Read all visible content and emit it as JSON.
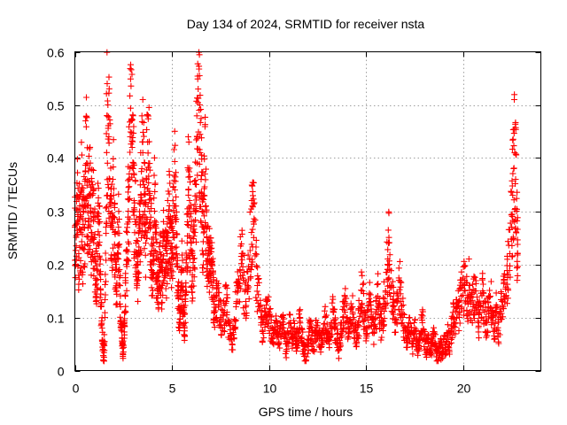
{
  "chart_data": {
    "type": "scatter",
    "title": "Day 134 of 2024, SRMTID for receiver nsta",
    "xlabel": "GPS time / hours",
    "ylabel": "SRMTID / TECUs",
    "xlim": [
      0,
      24
    ],
    "ylim": [
      0,
      0.6
    ],
    "xticks": [
      0,
      5,
      10,
      15,
      20
    ],
    "yticks": [
      0,
      0.1,
      0.2,
      0.3,
      0.4,
      0.5,
      0.6
    ],
    "xtick_labels": [
      "0",
      "5",
      "10",
      "15",
      "20"
    ],
    "ytick_labels": [
      "0",
      "0.1",
      "0.2",
      "0.3",
      "0.4",
      "0.5",
      "0.6"
    ],
    "grid": true,
    "marker": "+",
    "series_color": "#ff0000",
    "x_data_range": [
      0,
      22.8
    ],
    "note": "Dense cloud of plus markers; values below are a representative digitized subset of the scatter.",
    "series": [
      {
        "name": "nsta",
        "points": [
          [
            0.0,
            0.27
          ],
          [
            0.05,
            0.2
          ],
          [
            0.1,
            0.33
          ],
          [
            0.15,
            0.29
          ],
          [
            0.2,
            0.22
          ],
          [
            0.25,
            0.31
          ],
          [
            0.3,
            0.26
          ],
          [
            0.35,
            0.34
          ],
          [
            0.4,
            0.23
          ],
          [
            0.45,
            0.3
          ],
          [
            0.5,
            0.27
          ],
          [
            0.55,
            0.36
          ],
          [
            0.6,
            0.39
          ],
          [
            0.65,
            0.31
          ],
          [
            0.7,
            0.28
          ],
          [
            0.75,
            0.33
          ],
          [
            0.8,
            0.3
          ],
          [
            0.85,
            0.26
          ],
          [
            0.9,
            0.33
          ],
          [
            0.95,
            0.29
          ],
          [
            1.0,
            0.25
          ],
          [
            1.05,
            0.21
          ],
          [
            1.1,
            0.17
          ],
          [
            1.15,
            0.22
          ],
          [
            1.2,
            0.28
          ],
          [
            1.25,
            0.31
          ],
          [
            1.3,
            0.18
          ],
          [
            1.35,
            0.12
          ],
          [
            1.4,
            0.08
          ],
          [
            1.45,
            0.04
          ],
          [
            1.5,
            0.025
          ],
          [
            1.55,
            0.1
          ],
          [
            1.6,
            0.27
          ],
          [
            1.65,
            0.48
          ],
          [
            1.7,
            0.5
          ],
          [
            1.75,
            0.44
          ],
          [
            1.8,
            0.36
          ],
          [
            1.85,
            0.31
          ],
          [
            1.9,
            0.27
          ],
          [
            1.95,
            0.29
          ],
          [
            2.0,
            0.33
          ],
          [
            2.05,
            0.26
          ],
          [
            2.1,
            0.2
          ],
          [
            2.15,
            0.15
          ],
          [
            2.2,
            0.22
          ],
          [
            2.25,
            0.27
          ],
          [
            2.3,
            0.19
          ],
          [
            2.35,
            0.12
          ],
          [
            2.4,
            0.08
          ],
          [
            2.45,
            0.05
          ],
          [
            2.5,
            0.035
          ],
          [
            2.55,
            0.09
          ],
          [
            2.6,
            0.14
          ],
          [
            2.65,
            0.2
          ],
          [
            2.7,
            0.26
          ],
          [
            2.75,
            0.3
          ],
          [
            2.8,
            0.36
          ],
          [
            2.85,
            0.44
          ],
          [
            2.9,
            0.47
          ],
          [
            2.95,
            0.42
          ],
          [
            3.0,
            0.38
          ],
          [
            3.05,
            0.32
          ],
          [
            3.1,
            0.28
          ],
          [
            3.15,
            0.24
          ],
          [
            3.2,
            0.2
          ],
          [
            3.25,
            0.17
          ],
          [
            3.3,
            0.22
          ],
          [
            3.35,
            0.29
          ],
          [
            3.4,
            0.33
          ],
          [
            3.45,
            0.38
          ],
          [
            3.5,
            0.41
          ],
          [
            3.55,
            0.35
          ],
          [
            3.6,
            0.3
          ],
          [
            3.65,
            0.24
          ],
          [
            3.7,
            0.36
          ],
          [
            3.75,
            0.43
          ],
          [
            3.8,
            0.39
          ],
          [
            3.85,
            0.33
          ],
          [
            3.9,
            0.27
          ],
          [
            3.95,
            0.22
          ],
          [
            4.0,
            0.18
          ],
          [
            4.05,
            0.24
          ],
          [
            4.1,
            0.3
          ],
          [
            4.15,
            0.26
          ],
          [
            4.2,
            0.21
          ],
          [
            4.25,
            0.17
          ],
          [
            4.3,
            0.15
          ],
          [
            4.35,
            0.2
          ],
          [
            4.4,
            0.24
          ],
          [
            4.45,
            0.19
          ],
          [
            4.5,
            0.16
          ],
          [
            4.55,
            0.21
          ],
          [
            4.6,
            0.25
          ],
          [
            4.65,
            0.23
          ],
          [
            4.7,
            0.19
          ],
          [
            4.75,
            0.22
          ],
          [
            4.8,
            0.26
          ],
          [
            4.85,
            0.3
          ],
          [
            4.9,
            0.27
          ],
          [
            4.95,
            0.24
          ],
          [
            5.0,
            0.2
          ],
          [
            5.05,
            0.26
          ],
          [
            5.1,
            0.31
          ],
          [
            5.15,
            0.34
          ],
          [
            5.2,
            0.28
          ],
          [
            5.25,
            0.22
          ],
          [
            5.3,
            0.16
          ],
          [
            5.35,
            0.12
          ],
          [
            5.4,
            0.09
          ],
          [
            5.45,
            0.14
          ],
          [
            5.5,
            0.19
          ],
          [
            5.55,
            0.15
          ],
          [
            5.6,
            0.11
          ],
          [
            5.65,
            0.08
          ],
          [
            5.7,
            0.13
          ],
          [
            5.75,
            0.21
          ],
          [
            5.8,
            0.28
          ],
          [
            5.85,
            0.34
          ],
          [
            5.9,
            0.3
          ],
          [
            5.95,
            0.25
          ],
          [
            6.0,
            0.22
          ],
          [
            6.05,
            0.18
          ],
          [
            6.1,
            0.21
          ],
          [
            6.15,
            0.26
          ],
          [
            6.2,
            0.3
          ],
          [
            6.25,
            0.35
          ],
          [
            6.3,
            0.44
          ],
          [
            6.35,
            0.53
          ],
          [
            6.4,
            0.49
          ],
          [
            6.45,
            0.41
          ],
          [
            6.5,
            0.36
          ],
          [
            6.55,
            0.3
          ],
          [
            6.6,
            0.27
          ],
          [
            6.65,
            0.33
          ],
          [
            6.7,
            0.37
          ],
          [
            6.75,
            0.31
          ],
          [
            6.8,
            0.25
          ],
          [
            6.85,
            0.21
          ],
          [
            6.9,
            0.18
          ],
          [
            6.95,
            0.22
          ],
          [
            7.0,
            0.25
          ],
          [
            7.05,
            0.2
          ],
          [
            7.1,
            0.16
          ],
          [
            7.15,
            0.13
          ],
          [
            7.2,
            0.11
          ],
          [
            7.3,
            0.14
          ],
          [
            7.4,
            0.12
          ],
          [
            7.5,
            0.1
          ],
          [
            7.6,
            0.08
          ],
          [
            7.7,
            0.11
          ],
          [
            7.8,
            0.13
          ],
          [
            7.9,
            0.09
          ],
          [
            8.0,
            0.07
          ],
          [
            8.1,
            0.05
          ],
          [
            8.2,
            0.08
          ],
          [
            8.3,
            0.12
          ],
          [
            8.4,
            0.15
          ],
          [
            8.5,
            0.19
          ],
          [
            8.6,
            0.22
          ],
          [
            8.7,
            0.17
          ],
          [
            8.8,
            0.13
          ],
          [
            8.9,
            0.16
          ],
          [
            9.0,
            0.21
          ],
          [
            9.1,
            0.26
          ],
          [
            9.15,
            0.31
          ],
          [
            9.2,
            0.28
          ],
          [
            9.3,
            0.22
          ],
          [
            9.4,
            0.16
          ],
          [
            9.5,
            0.12
          ],
          [
            9.6,
            0.09
          ],
          [
            9.7,
            0.07
          ],
          [
            9.8,
            0.1
          ],
          [
            9.9,
            0.13
          ],
          [
            10.0,
            0.11
          ],
          [
            10.1,
            0.08
          ],
          [
            10.2,
            0.06
          ],
          [
            10.3,
            0.09
          ],
          [
            10.4,
            0.07
          ],
          [
            10.5,
            0.05
          ],
          [
            10.6,
            0.08
          ],
          [
            10.7,
            0.1
          ],
          [
            10.8,
            0.06
          ],
          [
            10.9,
            0.04
          ],
          [
            11.0,
            0.07
          ],
          [
            11.1,
            0.09
          ],
          [
            11.2,
            0.06
          ],
          [
            11.3,
            0.08
          ],
          [
            11.4,
            0.05
          ],
          [
            11.5,
            0.07
          ],
          [
            11.6,
            0.1
          ],
          [
            11.7,
            0.06
          ],
          [
            11.8,
            0.04
          ],
          [
            11.9,
            0.02
          ],
          [
            12.0,
            0.05
          ],
          [
            12.1,
            0.08
          ],
          [
            12.2,
            0.06
          ],
          [
            12.3,
            0.04
          ],
          [
            12.4,
            0.07
          ],
          [
            12.5,
            0.09
          ],
          [
            12.6,
            0.06
          ],
          [
            12.7,
            0.05
          ],
          [
            12.8,
            0.08
          ],
          [
            12.9,
            0.1
          ],
          [
            13.0,
            0.07
          ],
          [
            13.1,
            0.05
          ],
          [
            13.2,
            0.08
          ],
          [
            13.3,
            0.11
          ],
          [
            13.4,
            0.08
          ],
          [
            13.5,
            0.06
          ],
          [
            13.6,
            0.04
          ],
          [
            13.7,
            0.07
          ],
          [
            13.8,
            0.1
          ],
          [
            13.9,
            0.13
          ],
          [
            14.0,
            0.1
          ],
          [
            14.1,
            0.07
          ],
          [
            14.2,
            0.09
          ],
          [
            14.3,
            0.12
          ],
          [
            14.4,
            0.08
          ],
          [
            14.5,
            0.06
          ],
          [
            14.6,
            0.09
          ],
          [
            14.7,
            0.12
          ],
          [
            14.8,
            0.15
          ],
          [
            14.9,
            0.11
          ],
          [
            15.0,
            0.08
          ],
          [
            15.1,
            0.1
          ],
          [
            15.2,
            0.13
          ],
          [
            15.3,
            0.09
          ],
          [
            15.4,
            0.07
          ],
          [
            15.5,
            0.11
          ],
          [
            15.6,
            0.14
          ],
          [
            15.7,
            0.1
          ],
          [
            15.8,
            0.08
          ],
          [
            15.9,
            0.12
          ],
          [
            16.0,
            0.15
          ],
          [
            16.1,
            0.19
          ],
          [
            16.15,
            0.24
          ],
          [
            16.2,
            0.2
          ],
          [
            16.3,
            0.16
          ],
          [
            16.4,
            0.12
          ],
          [
            16.5,
            0.09
          ],
          [
            16.6,
            0.13
          ],
          [
            16.7,
            0.17
          ],
          [
            16.8,
            0.13
          ],
          [
            16.9,
            0.1
          ],
          [
            17.0,
            0.08
          ],
          [
            17.1,
            0.06
          ],
          [
            17.2,
            0.09
          ],
          [
            17.3,
            0.07
          ],
          [
            17.4,
            0.05
          ],
          [
            17.5,
            0.08
          ],
          [
            17.6,
            0.06
          ],
          [
            17.7,
            0.04
          ],
          [
            17.8,
            0.07
          ],
          [
            17.9,
            0.09
          ],
          [
            18.0,
            0.06
          ],
          [
            18.1,
            0.04
          ],
          [
            18.2,
            0.06
          ],
          [
            18.3,
            0.03
          ],
          [
            18.4,
            0.05
          ],
          [
            18.5,
            0.07
          ],
          [
            18.6,
            0.04
          ],
          [
            18.7,
            0.02
          ],
          [
            18.8,
            0.05
          ],
          [
            18.9,
            0.03
          ],
          [
            19.0,
            0.06
          ],
          [
            19.1,
            0.04
          ],
          [
            19.2,
            0.07
          ],
          [
            19.3,
            0.05
          ],
          [
            19.4,
            0.08
          ],
          [
            19.5,
            0.1
          ],
          [
            19.6,
            0.09
          ],
          [
            19.7,
            0.12
          ],
          [
            19.8,
            0.11
          ],
          [
            19.9,
            0.14
          ],
          [
            20.0,
            0.16
          ],
          [
            20.1,
            0.15
          ],
          [
            20.2,
            0.13
          ],
          [
            20.3,
            0.16
          ],
          [
            20.4,
            0.14
          ],
          [
            20.5,
            0.12
          ],
          [
            20.6,
            0.15
          ],
          [
            20.7,
            0.11
          ],
          [
            20.8,
            0.09
          ],
          [
            20.9,
            0.12
          ],
          [
            21.0,
            0.15
          ],
          [
            21.1,
            0.11
          ],
          [
            21.2,
            0.09
          ],
          [
            21.3,
            0.12
          ],
          [
            21.4,
            0.14
          ],
          [
            21.5,
            0.1
          ],
          [
            21.6,
            0.08
          ],
          [
            21.7,
            0.11
          ],
          [
            21.8,
            0.07
          ],
          [
            21.9,
            0.1
          ],
          [
            22.0,
            0.13
          ],
          [
            22.1,
            0.17
          ],
          [
            22.2,
            0.14
          ],
          [
            22.3,
            0.18
          ],
          [
            22.4,
            0.22
          ],
          [
            22.5,
            0.27
          ],
          [
            22.55,
            0.33
          ],
          [
            22.6,
            0.38
          ],
          [
            22.65,
            0.41
          ],
          [
            22.7,
            0.36
          ],
          [
            22.75,
            0.3
          ],
          [
            22.8,
            0.22
          ]
        ]
      }
    ]
  }
}
